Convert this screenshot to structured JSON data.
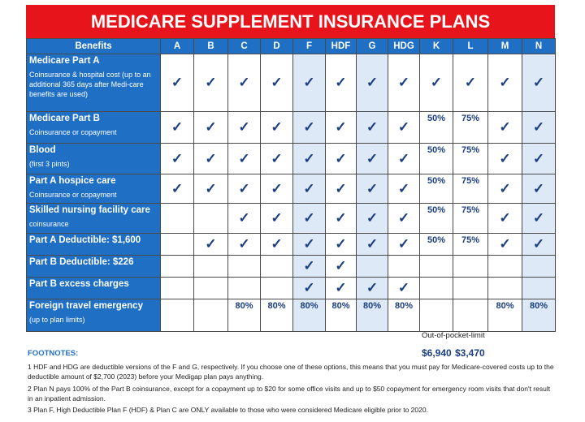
{
  "header": {
    "title": "MEDICARE SUPPLEMENT INSURANCE PLANS"
  },
  "table": {
    "corner": "Benefits",
    "plans": [
      "A",
      "B",
      "C",
      "D",
      "F",
      "HDF",
      "G",
      "HDG",
      "K",
      "L",
      "M",
      "N"
    ],
    "rows": [
      {
        "title": "Medicare Part A",
        "subtitle": "Coinsurance & hospital cost (up to an additional 365 days after Medi-care benefits are used)",
        "cells": [
          "✓",
          "✓",
          "✓",
          "✓",
          "✓",
          "✓",
          "✓",
          "✓",
          "✓",
          "✓",
          "✓",
          "✓"
        ]
      },
      {
        "title": "Medicare Part B",
        "subtitle": "Coinsurance or copayment",
        "cells": [
          "✓",
          "✓",
          "✓",
          "✓",
          "✓",
          "✓",
          "✓",
          "✓",
          "50%",
          "75%",
          "✓",
          "✓"
        ]
      },
      {
        "title": "Blood",
        "subtitle": "(first 3 pints)",
        "cells": [
          "✓",
          "✓",
          "✓",
          "✓",
          "✓",
          "✓",
          "✓",
          "✓",
          "50%",
          "75%",
          "✓",
          "✓"
        ]
      },
      {
        "title": "Part A hospice care",
        "subtitle": "Coinsurance or copayment",
        "cells": [
          "✓",
          "✓",
          "✓",
          "✓",
          "✓",
          "✓",
          "✓",
          "✓",
          "50%",
          "75%",
          "✓",
          "✓"
        ]
      },
      {
        "title": "Skilled nursing facility care",
        "subtitle": "coinsurance",
        "cells": [
          null,
          null,
          "✓",
          "✓",
          "✓",
          "✓",
          "✓",
          "✓",
          "50%",
          "75%",
          "✓",
          "✓"
        ]
      },
      {
        "title": "Part A Deductible:  $1,600",
        "cells": [
          null,
          "✓",
          "✓",
          "✓",
          "✓",
          "✓",
          "✓",
          "✓",
          "50%",
          "75%",
          "✓",
          "✓"
        ]
      },
      {
        "title": "Part B Deductible:  $226",
        "cells": [
          null,
          null,
          null,
          null,
          "✓",
          "✓",
          null,
          null,
          null,
          null,
          null,
          null
        ]
      },
      {
        "title": "Part B excess charges",
        "cells": [
          null,
          null,
          null,
          null,
          "✓",
          "✓",
          "✓",
          "✓",
          null,
          null,
          null,
          null
        ]
      },
      {
        "title": "Foreign travel emergency",
        "subtitle": "(up to plan limits)",
        "cells": [
          null,
          null,
          "80%",
          "80%",
          "80%",
          "80%",
          "80%",
          "80%",
          null,
          null,
          "80%",
          "80%"
        ]
      }
    ]
  },
  "out_of_pocket": {
    "label": "Out-of-pocket-limit",
    "values": [
      "$6,940",
      "$3,470"
    ]
  },
  "footnotes": {
    "heading": "FOOTNOTES:",
    "items": [
      "1 HDF and HDG are deductible versions of the F and G, respectively.  If you choose one of these options, this means that you must pay for Medicare-covered costs up to the deductible amount of $2,700 (2023) before your Medigap plan pays anything.",
      "2 Plan N pays 100% of the Part B coinsurance, except for a copayment up to $20 for some office visits and up to $50 copayment for emergency room visits that don't result in an inpatient admission.",
      "3 Plan F, High Deductible Plan F (HDF) & Plan C are ONLY available to those who were considered Medicare eligible prior to 2020."
    ]
  }
}
